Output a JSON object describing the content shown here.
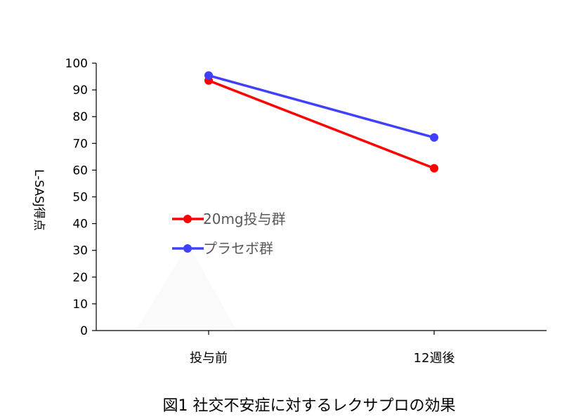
{
  "chart_data": {
    "type": "line",
    "categories": [
      "投与前",
      "12週後"
    ],
    "series": [
      {
        "name": "20mg投与群",
        "values": [
          93.5,
          60.7
        ],
        "color": "#ff0000"
      },
      {
        "name": "プラセボ群",
        "values": [
          95.4,
          72.2
        ],
        "color": "#4040ff"
      }
    ],
    "ylabel": "L-SASJ得点",
    "ylim": [
      0,
      100
    ],
    "yticks": [
      0,
      10,
      20,
      30,
      40,
      50,
      60,
      70,
      80,
      90,
      100
    ],
    "legend_position": "center-left",
    "grid": false,
    "caption": "図1 社交不安症に対するレクサプロの効果"
  }
}
